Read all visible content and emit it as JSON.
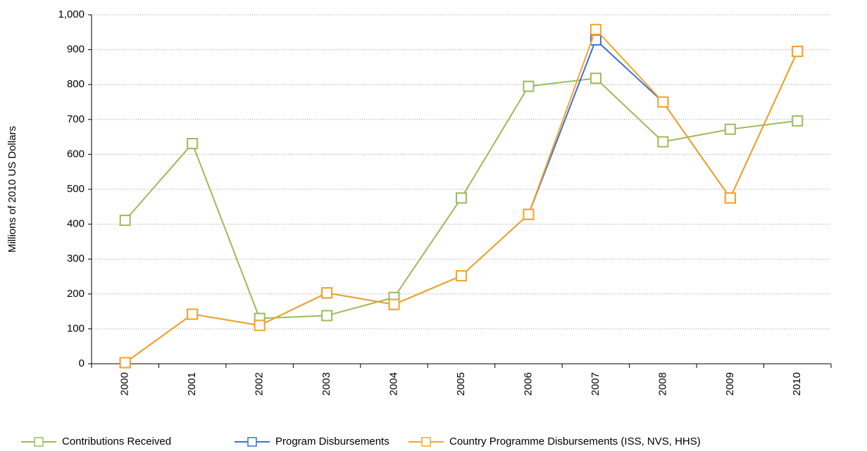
{
  "chart_data": {
    "type": "line",
    "y_label": "Millions of 2010 US Dollars",
    "categories": [
      "2000",
      "2001",
      "2002",
      "2003",
      "2004",
      "2005",
      "2006",
      "2007",
      "2008",
      "2009",
      "2010"
    ],
    "series": [
      {
        "name": "Contributions Received",
        "color": "#9bbb59",
        "values": [
          411,
          631,
          130,
          138,
          190,
          475,
          795,
          818,
          636,
          672,
          696
        ]
      },
      {
        "name": "Program Disbursements",
        "color": "#3c6fd8",
        "values": [
          3,
          142,
          110,
          203,
          170,
          252,
          428,
          928,
          750,
          475,
          895
        ]
      },
      {
        "name": "Country Programme Disbursements (ISS, NVS, HHS)",
        "color": "#f5a623",
        "values": [
          3,
          142,
          110,
          203,
          170,
          252,
          428,
          958,
          750,
          475,
          895
        ]
      }
    ],
    "ylim": [
      0,
      1000
    ],
    "yticks": [
      0,
      100,
      200,
      300,
      400,
      500,
      600,
      700,
      800,
      900,
      {
        "value": 1000,
        "label": "1,000"
      }
    ],
    "grid": true
  }
}
